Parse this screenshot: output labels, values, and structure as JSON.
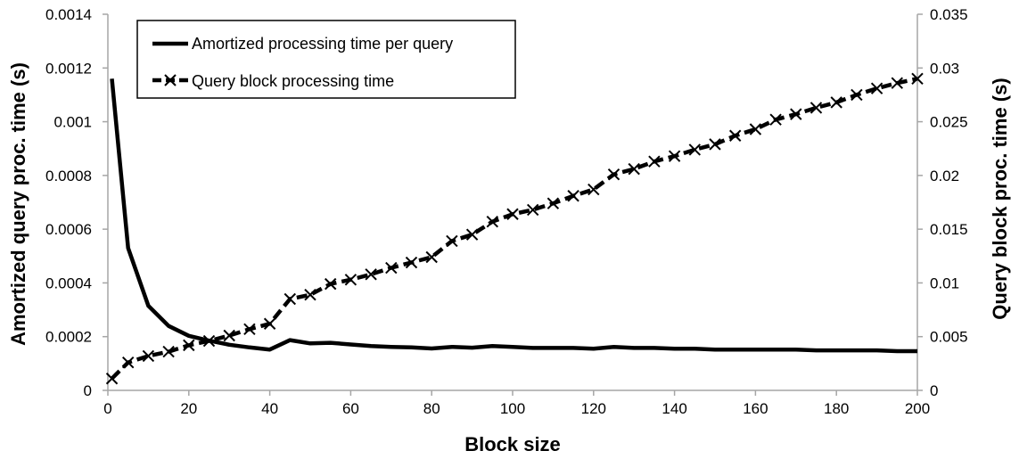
{
  "chart_data": {
    "type": "line",
    "title": "",
    "xlabel": "Block size",
    "ylabel_left": "Amortized query proc. time (s)",
    "ylabel_right": "Query block proc. time (s)",
    "xlim": [
      0,
      200
    ],
    "ylim_left": [
      0,
      0.0014
    ],
    "ylim_right": [
      0,
      0.035
    ],
    "x_ticks": [
      "0",
      "20",
      "40",
      "60",
      "80",
      "100",
      "120",
      "140",
      "160",
      "180",
      "200"
    ],
    "y_left_ticks": [
      "0",
      "0.0002",
      "0.0004",
      "0.0006",
      "0.0008",
      "0.001",
      "0.0012",
      "0.0014"
    ],
    "y_right_ticks": [
      "0",
      "0.005",
      "0.01",
      "0.015",
      "0.02",
      "0.025",
      "0.03",
      "0.035"
    ],
    "grid": "none",
    "legend_position": "top-left",
    "series": [
      {
        "name": "Amortized processing time per query",
        "axis": "left",
        "marker": "none",
        "line_style": "solid",
        "color": "#000000",
        "x": [
          1,
          5,
          10,
          15,
          20,
          25,
          30,
          35,
          40,
          45,
          50,
          55,
          60,
          65,
          70,
          75,
          80,
          85,
          90,
          95,
          100,
          105,
          110,
          115,
          120,
          125,
          130,
          135,
          140,
          145,
          150,
          155,
          160,
          165,
          170,
          175,
          180,
          185,
          190,
          195,
          200
        ],
        "y": [
          0.00116,
          0.00053,
          0.000315,
          0.00024,
          0.000203,
          0.000185,
          0.00017,
          0.00016,
          0.000152,
          0.000187,
          0.000175,
          0.000177,
          0.000171,
          0.000165,
          0.000162,
          0.00016,
          0.000156,
          0.000162,
          0.000159,
          0.000165,
          0.000162,
          0.000158,
          0.000158,
          0.000158,
          0.000155,
          0.000162,
          0.000158,
          0.000158,
          0.000155,
          0.000155,
          0.000152,
          0.000152,
          0.000152,
          0.000152,
          0.000152,
          0.000149,
          0.000149,
          0.000149,
          0.000149,
          0.000146,
          0.000146
        ]
      },
      {
        "name": "Query block processing time",
        "axis": "right",
        "marker": "x",
        "line_style": "dashed",
        "color": "#000000",
        "x": [
          1,
          5,
          10,
          15,
          20,
          25,
          30,
          35,
          40,
          45,
          50,
          55,
          60,
          65,
          70,
          75,
          80,
          85,
          90,
          95,
          100,
          105,
          110,
          115,
          120,
          125,
          130,
          135,
          140,
          145,
          150,
          155,
          160,
          165,
          170,
          175,
          180,
          185,
          190,
          195,
          200
        ],
        "y": [
          0.0011,
          0.0026,
          0.0032,
          0.0036,
          0.0042,
          0.0046,
          0.0051,
          0.0057,
          0.0062,
          0.0085,
          0.0089,
          0.0099,
          0.0103,
          0.0108,
          0.0114,
          0.0119,
          0.0124,
          0.0139,
          0.0145,
          0.0157,
          0.0164,
          0.0168,
          0.0174,
          0.0181,
          0.0187,
          0.0201,
          0.0206,
          0.0213,
          0.0218,
          0.0224,
          0.0229,
          0.0237,
          0.0243,
          0.0252,
          0.0257,
          0.0263,
          0.0268,
          0.0275,
          0.0281,
          0.0286,
          0.029
        ]
      }
    ]
  }
}
